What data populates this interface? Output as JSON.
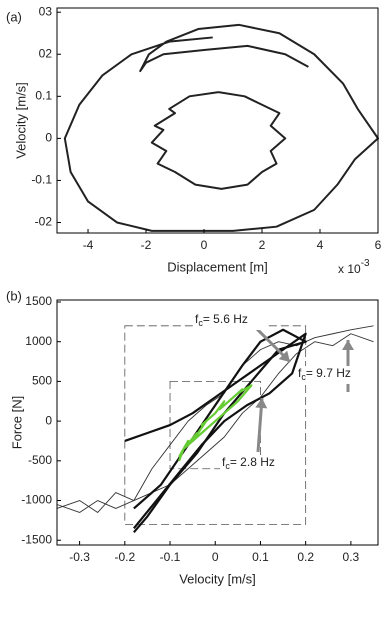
{
  "chart_data": [
    {
      "type": "line",
      "panel_label": "(a)",
      "x_label": "Displacement [m]",
      "y_label": "Velocity [m/s]",
      "x_multiplier": {
        "base": "x 10",
        "exponent": "-3"
      },
      "xlim": [
        -5.07,
        6
      ],
      "ylim": [
        -0.225,
        0.31
      ],
      "xticks": [
        -4,
        -2,
        0,
        2,
        4,
        6
      ],
      "yticks": [
        {
          "value": 0.3,
          "label": "03"
        },
        {
          "value": 0.2,
          "label": "02"
        },
        {
          "value": 0.1,
          "label": "0.1"
        },
        0,
        {
          "value": -0.1,
          "label": "-0.1"
        },
        {
          "value": -0.2,
          "label": "-02"
        }
      ],
      "series": [
        {
          "color": "#222222",
          "x": [
            0.3,
            -1.2,
            -2.5,
            -3.5,
            -4.3,
            -4.8,
            -4.6,
            -4.0,
            -3.0,
            -1.8,
            -0.5,
            1.0,
            2.5,
            3.8,
            4.6,
            5.2,
            6.0,
            5.3,
            4.8,
            3.8,
            2.6,
            1.2,
            -0.2,
            -1.3,
            -1.9,
            -2.2,
            -2.0,
            -1.4,
            0.0,
            1.5,
            2.8,
            3.6
          ],
          "values": [
            0.24,
            0.23,
            0.2,
            0.15,
            0.08,
            0.0,
            -0.08,
            -0.15,
            -0.2,
            -0.22,
            -0.22,
            -0.22,
            -0.21,
            -0.17,
            -0.11,
            -0.05,
            0.0,
            0.07,
            0.13,
            0.2,
            0.25,
            0.27,
            0.26,
            0.23,
            0.2,
            0.16,
            0.18,
            0.2,
            0.21,
            0.22,
            0.2,
            0.17
          ]
        },
        {
          "color": "#222222",
          "x": [
            0.5,
            -0.5,
            -1.2,
            -1.0,
            -1.7,
            -1.4,
            -1.8,
            -1.3,
            -1.6,
            -1.0,
            -0.3,
            0.6,
            1.5,
            2.0,
            2.5,
            2.3,
            2.8,
            2.3,
            2.6,
            2.0,
            1.4,
            0.5
          ],
          "values": [
            0.11,
            0.1,
            0.07,
            0.06,
            0.03,
            0.02,
            -0.01,
            -0.03,
            -0.06,
            -0.08,
            -0.11,
            -0.12,
            -0.11,
            -0.08,
            -0.06,
            -0.03,
            0.0,
            0.03,
            0.06,
            0.08,
            0.1,
            0.11
          ]
        }
      ]
    },
    {
      "type": "line",
      "panel_label": "(b)",
      "x_label": "Velocity [m/s]",
      "y_label": "Force [N]",
      "xlim": [
        -0.35,
        0.36
      ],
      "ylim": [
        -1560,
        1525
      ],
      "xticks": [
        -0.3,
        -0.2,
        -0.1,
        0,
        0.1,
        0.2,
        0.3
      ],
      "yticks": [
        1500,
        1000,
        500,
        0,
        -500,
        -1000,
        -1500
      ],
      "boxes": [
        {
          "x": [
            -0.2,
            0.2
          ],
          "y": [
            -1300,
            1200
          ]
        },
        {
          "x": [
            -0.1,
            0.1
          ],
          "y": [
            -600,
            500
          ]
        }
      ],
      "annotations": [
        {
          "symbol": "f",
          "subscript": "c",
          "text": "= 5.6 Hz"
        },
        {
          "symbol": "f",
          "subscript": "c",
          "text": "= 9.7 Hz"
        },
        {
          "symbol": "f",
          "subscript": "c",
          "text": "= 2.8 Hz"
        }
      ],
      "series": [
        {
          "color": "#333333",
          "x": [
            -0.35,
            -0.3,
            -0.26,
            -0.22,
            -0.18,
            -0.14,
            -0.1,
            -0.06,
            -0.02,
            0.02,
            0.06,
            0.1,
            0.14,
            0.18,
            0.22,
            0.26,
            0.3,
            0.35
          ],
          "values": [
            -1100,
            -1000,
            -1150,
            -900,
            -1000,
            -600,
            -300,
            0,
            200,
            350,
            700,
            900,
            1000,
            950,
            1050,
            1100,
            1150,
            1200
          ]
        },
        {
          "color": "#333333",
          "x": [
            0.35,
            0.3,
            0.26,
            0.22,
            0.18,
            0.14,
            0.1,
            0.06,
            0.02,
            -0.02,
            -0.06,
            -0.1,
            -0.14,
            -0.18,
            -0.22,
            -0.26,
            -0.3,
            -0.35
          ],
          "values": [
            1000,
            1100,
            950,
            1000,
            850,
            600,
            300,
            100,
            -200,
            -400,
            -600,
            -800,
            -900,
            -1000,
            -1100,
            -1000,
            -1150,
            -1050
          ]
        },
        {
          "color": "#111111",
          "x": [
            -0.2,
            -0.15,
            -0.1,
            -0.05,
            0.0,
            0.05,
            0.1,
            0.15,
            0.2,
            0.17,
            0.12,
            0.07,
            0.02,
            -0.03,
            -0.08,
            -0.13,
            -0.18
          ],
          "values": [
            -250,
            -150,
            -50,
            100,
            300,
            500,
            700,
            900,
            1100,
            600,
            350,
            200,
            0,
            -300,
            -650,
            -1000,
            -1350
          ]
        },
        {
          "color": "#111111",
          "x": [
            -0.18,
            -0.12,
            -0.06,
            0.0,
            0.06,
            0.1,
            0.15,
            0.2,
            0.14,
            0.08,
            0.02,
            -0.04,
            -0.1,
            -0.15,
            -0.18
          ],
          "values": [
            -1100,
            -800,
            -300,
            200,
            700,
            1000,
            1150,
            1000,
            900,
            500,
            100,
            -400,
            -800,
            -1200,
            -1400
          ]
        },
        {
          "color": "#66cc33",
          "x": [
            -0.08,
            -0.06,
            -0.07,
            -0.04,
            -0.05,
            -0.02,
            -0.03,
            0.0,
            0.02,
            0.01,
            0.04,
            0.03,
            0.06,
            0.05,
            0.08,
            0.05,
            0.02,
            -0.01,
            -0.04,
            -0.07,
            -0.08
          ],
          "values": [
            -450,
            -250,
            -350,
            -150,
            -250,
            0,
            -50,
            100,
            250,
            150,
            300,
            250,
            400,
            350,
            450,
            250,
            100,
            -50,
            -200,
            -350,
            -500
          ]
        }
      ]
    }
  ]
}
